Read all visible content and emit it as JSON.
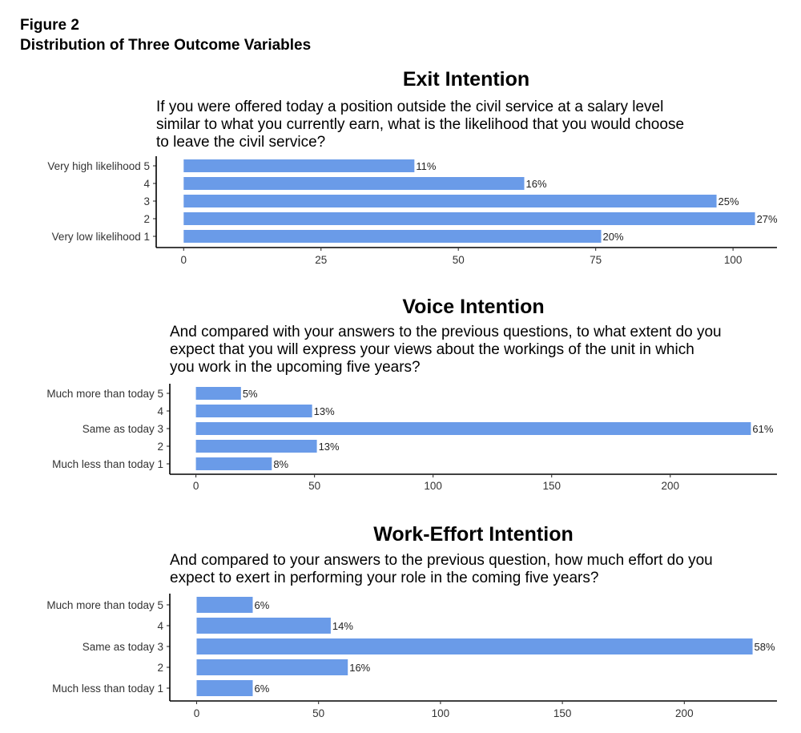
{
  "figure": {
    "label": "Figure 2",
    "title": "Distribution of Three Outcome Variables"
  },
  "colors": {
    "bar": "#6a9be8",
    "axis": "#000000"
  },
  "chart_data": [
    {
      "type": "bar",
      "orientation": "horizontal",
      "title": "Exit Intention",
      "question": [
        "If you were offered today a position outside the civil service at a salary level",
        "similar to what you currently earn, what is the likelihood that you would choose",
        "to leave the civil service?"
      ],
      "categories": [
        "Very high likelihood 5",
        "4",
        "3",
        "2",
        "Very low likelihood 1"
      ],
      "values": [
        42,
        62,
        97,
        104,
        76
      ],
      "data_labels": [
        "11%",
        "16%",
        "25%",
        "27%",
        "20%"
      ],
      "xlim": [
        -5,
        108
      ],
      "xticks": [
        0,
        25,
        50,
        75,
        100
      ],
      "xlabel": "",
      "ylabel": "",
      "grid": false
    },
    {
      "type": "bar",
      "orientation": "horizontal",
      "title": "Voice Intention",
      "question": [
        "And compared with your answers to the previous questions, to what extent do you",
        "expect that you will express your views about the workings of the unit in which",
        "you work in the upcoming five years?"
      ],
      "categories": [
        "Much more than today 5",
        "4",
        "Same as today 3",
        "2",
        "Much less than today 1"
      ],
      "values": [
        19,
        49,
        234,
        51,
        32
      ],
      "data_labels": [
        "5%",
        "13%",
        "61%",
        "13%",
        "8%"
      ],
      "xlim": [
        -11,
        245
      ],
      "xticks": [
        0,
        50,
        100,
        150,
        200
      ],
      "xlabel": "",
      "ylabel": "",
      "grid": false
    },
    {
      "type": "bar",
      "orientation": "horizontal",
      "title": "Work-Effort Intention",
      "question": [
        "And compared to your answers to the previous question, how much effort do you",
        "expect to exert in performing your role in the coming five years?"
      ],
      "categories": [
        "Much more than today 5",
        "4",
        "Same as today 3",
        "2",
        "Much less than today 1"
      ],
      "values": [
        23,
        55,
        228,
        62,
        23
      ],
      "data_labels": [
        "6%",
        "14%",
        "58%",
        "16%",
        "6%"
      ],
      "xlim": [
        -11,
        238
      ],
      "xticks": [
        0,
        50,
        100,
        150,
        200
      ],
      "xlabel": "",
      "ylabel": "",
      "grid": false
    }
  ]
}
